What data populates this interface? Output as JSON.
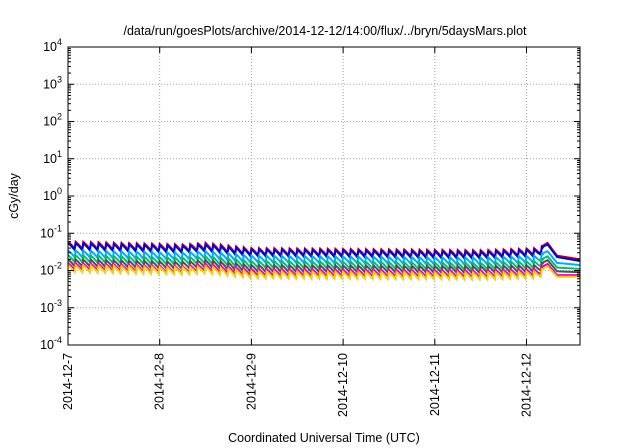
{
  "chart_data": {
    "type": "line",
    "title": "/data/run/goesPlots/archive/2014-12-12/14:00/flux/../bryn/5daysMars.plot",
    "xlabel": "Coordinated Universal Time (UTC)",
    "ylabel": "cGy/day",
    "y_scale": "log",
    "ylim": [
      0.0001,
      10000
    ],
    "y_ticks": [
      {
        "base": "10",
        "exp": "-4",
        "value": 0.0001
      },
      {
        "base": "10",
        "exp": "-3",
        "value": 0.001
      },
      {
        "base": "10",
        "exp": "-2",
        "value": 0.01
      },
      {
        "base": "10",
        "exp": "-1",
        "value": 0.1
      },
      {
        "base": "10",
        "exp": "0",
        "value": 1
      },
      {
        "base": "10",
        "exp": "1",
        "value": 10
      },
      {
        "base": "10",
        "exp": "2",
        "value": 100
      },
      {
        "base": "10",
        "exp": "3",
        "value": 1000
      },
      {
        "base": "10",
        "exp": "4",
        "value": 10000
      }
    ],
    "x_range": [
      "2014-12-07 00:00",
      "2014-12-12 14:00"
    ],
    "x_ticks": [
      "2014-12-7",
      "2014-12-8",
      "2014-12-9",
      "2014-12-10",
      "2014-12-11",
      "2014-12-12"
    ],
    "grid": true,
    "legend": "none",
    "sawtooth_period_hours": 2.0,
    "series": [
      {
        "color": "#cc0000",
        "knots": [
          [
            0,
            0.06
          ],
          [
            30,
            0.05
          ],
          [
            36,
            0.055
          ],
          [
            48,
            0.04
          ],
          [
            108,
            0.035
          ],
          [
            123,
            0.04
          ],
          [
            125.5,
            0.055
          ],
          [
            128,
            0.025
          ],
          [
            134,
            0.02
          ]
        ],
        "drop": 0.6
      },
      {
        "color": "#0000dd",
        "knots": [
          [
            0,
            0.055
          ],
          [
            30,
            0.046
          ],
          [
            36,
            0.05
          ],
          [
            48,
            0.037
          ],
          [
            108,
            0.032
          ],
          [
            123,
            0.037
          ],
          [
            125.5,
            0.05
          ],
          [
            128,
            0.023
          ],
          [
            134,
            0.018
          ]
        ],
        "drop": 0.6
      },
      {
        "color": "#00aaff",
        "knots": [
          [
            0,
            0.035
          ],
          [
            30,
            0.03
          ],
          [
            36,
            0.033
          ],
          [
            48,
            0.025
          ],
          [
            108,
            0.022
          ],
          [
            123,
            0.025
          ],
          [
            125.5,
            0.033
          ],
          [
            128,
            0.016
          ],
          [
            134,
            0.014
          ]
        ],
        "drop": 0.6
      },
      {
        "color": "#00c070",
        "knots": [
          [
            0,
            0.026
          ],
          [
            30,
            0.022
          ],
          [
            36,
            0.024
          ],
          [
            48,
            0.018
          ],
          [
            108,
            0.016
          ],
          [
            123,
            0.018
          ],
          [
            125.5,
            0.024
          ],
          [
            128,
            0.012
          ],
          [
            134,
            0.011
          ]
        ],
        "drop": 0.6
      },
      {
        "color": "#505050",
        "knots": [
          [
            0,
            0.02
          ],
          [
            30,
            0.017
          ],
          [
            36,
            0.019
          ],
          [
            48,
            0.014
          ],
          [
            108,
            0.013
          ],
          [
            123,
            0.014
          ],
          [
            125.5,
            0.019
          ],
          [
            128,
            0.0095
          ],
          [
            134,
            0.009
          ]
        ],
        "drop": 0.6
      },
      {
        "color": "#dd00dd",
        "knots": [
          [
            0,
            0.016
          ],
          [
            30,
            0.013
          ],
          [
            36,
            0.015
          ],
          [
            48,
            0.011
          ],
          [
            108,
            0.01
          ],
          [
            123,
            0.011
          ],
          [
            125.5,
            0.015
          ],
          [
            128,
            0.0075
          ],
          [
            134,
            0.0075
          ]
        ],
        "drop": 0.6
      },
      {
        "color": "#ffcc00",
        "knots": [
          [
            0,
            0.014
          ],
          [
            30,
            0.012
          ],
          [
            36,
            0.013
          ],
          [
            48,
            0.0095
          ],
          [
            108,
            0.0088
          ],
          [
            123,
            0.0095
          ],
          [
            125.5,
            0.013
          ],
          [
            128,
            0.0068
          ],
          [
            134,
            0.0068
          ]
        ],
        "drop": 0.6
      }
    ]
  }
}
